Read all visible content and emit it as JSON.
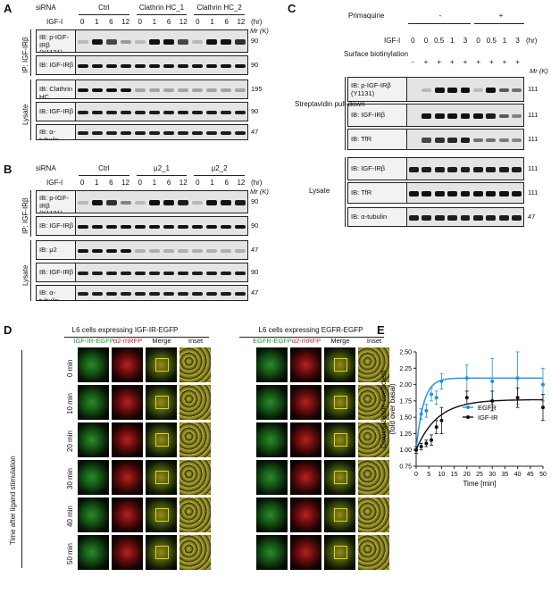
{
  "panels": {
    "A": "A",
    "B": "B",
    "C": "C",
    "D": "D",
    "E": "E"
  },
  "panelA": {
    "sirna_label": "siRNA",
    "groups": [
      "Ctrl",
      "Clathrin HC_1",
      "Clathrin HC_2"
    ],
    "igf_label": "IGF-I",
    "timepoints": [
      "0",
      "1",
      "6",
      "12",
      "0",
      "1",
      "6",
      "12",
      "0",
      "1",
      "6",
      "12"
    ],
    "unit": "(hr)",
    "mr": "Mr (K)",
    "ip_label": "IP: IGF-IRβ",
    "lysate_label": "Lysate",
    "blots": [
      {
        "label": "IB: p-IGF-IRβ (Y1131)",
        "mw": "90"
      },
      {
        "label": "IB: IGF-IRβ",
        "mw": "90"
      },
      {
        "label": "IB: Clathrin HC",
        "mw": "195"
      },
      {
        "label": "IB: IGF-IRβ",
        "mw": "90"
      },
      {
        "label": "IB: α-tubulin",
        "mw": "47"
      }
    ]
  },
  "panelB": {
    "sirna_label": "siRNA",
    "groups": [
      "Ctrl",
      "μ2_1",
      "μ2_2"
    ],
    "igf_label": "IGF-I",
    "timepoints": [
      "0",
      "1",
      "6",
      "12",
      "0",
      "1",
      "6",
      "12",
      "0",
      "1",
      "6",
      "12"
    ],
    "unit": "(hr)",
    "mr": "Mr (K)",
    "ip_label": "IP: IGF-IRβ",
    "lysate_label": "Lysate",
    "blots": [
      {
        "label": "IB: p-IGF-IRβ (Y1131)",
        "mw": "90"
      },
      {
        "label": "IB: IGF-IRβ",
        "mw": "90"
      },
      {
        "label": "IB: μ2",
        "mw": "47"
      },
      {
        "label": "IB: IGF-IRβ",
        "mw": "90"
      },
      {
        "label": "IB: α-tubulin",
        "mw": "47"
      }
    ]
  },
  "panelC": {
    "primaquine_label": "Primaquine",
    "primaquine_minus": "-",
    "primaquine_plus": "+",
    "igf_label": "IGF-I",
    "timepoints": [
      "0",
      "0",
      "0.5",
      "1",
      "3",
      "0",
      "0.5",
      "1",
      "3"
    ],
    "unit": "(hr)",
    "surface_label": "Surface biotinylation",
    "surface_marks": [
      "-",
      "+",
      "+",
      "+",
      "+",
      "+",
      "+",
      "+",
      "+"
    ],
    "mr": "Mr (K)",
    "strep_label": "Streptavidin pull-down",
    "lysate_label": "Lysate",
    "blots": [
      {
        "label": "IB: p-IGF-IRβ (Y1131)",
        "mw": "111"
      },
      {
        "label": "IB: IGF-IRβ",
        "mw": "111"
      },
      {
        "label": "IB: TfR",
        "mw": "111"
      },
      {
        "label": "IB: IGF-IRβ",
        "mw": "111"
      },
      {
        "label": "IB: TfR",
        "mw": "111"
      },
      {
        "label": "IB: α-tubulin",
        "mw": "47"
      }
    ]
  },
  "panelD": {
    "left_title": "L6 cells expressing IGF-IR-EGFP",
    "right_title": "L6 cells expressing EGFR-EGFP",
    "left_cols": [
      "IGF-IR-EGFP",
      "α2-mRFP",
      "Merge",
      "Inset"
    ],
    "right_cols": [
      "EGFR-EGFP",
      "α2-mRFP",
      "Merge",
      "Inset"
    ],
    "rows": [
      "0 min",
      "10 min",
      "20 min",
      "30 min",
      "40 min",
      "50 min"
    ],
    "y_label": "Time after ligand stimulation"
  },
  "chart_data": {
    "type": "scatter",
    "title": "",
    "xlabel": "Time [min]",
    "ylabel": "Colocalization coefficient (fold over basal)",
    "xlim": [
      0,
      50
    ],
    "ylim": [
      0.75,
      2.5
    ],
    "xticks": [
      "0",
      "5",
      "10",
      "15",
      "20",
      "25",
      "30",
      "35",
      "40",
      "45",
      "50"
    ],
    "yticks": [
      "0.75",
      "1.00",
      "1.25",
      "1.50",
      "1.75",
      "2.00",
      "2.25",
      "2.50"
    ],
    "legend_position": "center-right",
    "series": [
      {
        "name": "EGFR",
        "color": "#1e90e8",
        "x": [
          0,
          2,
          4,
          6,
          8,
          10,
          20,
          30,
          40,
          50
        ],
        "y": [
          1.0,
          1.55,
          1.6,
          1.85,
          1.8,
          2.05,
          2.1,
          2.05,
          2.1,
          2.0
        ],
        "err": [
          0.05,
          0.08,
          0.1,
          0.1,
          0.1,
          0.12,
          0.2,
          0.35,
          0.4,
          0.25
        ],
        "fit_plateau": 2.1,
        "fit_rate": 0.35
      },
      {
        "name": "IGF-IR",
        "color": "#111111",
        "x": [
          0,
          2,
          4,
          6,
          8,
          10,
          20,
          30,
          40,
          50
        ],
        "y": [
          1.0,
          1.05,
          1.1,
          1.15,
          1.35,
          1.45,
          1.8,
          1.75,
          1.8,
          1.65
        ],
        "err": [
          0.05,
          0.05,
          0.05,
          0.08,
          0.1,
          0.2,
          0.1,
          0.15,
          0.15,
          0.2
        ],
        "fit_plateau": 1.77,
        "fit_rate": 0.12
      }
    ]
  }
}
